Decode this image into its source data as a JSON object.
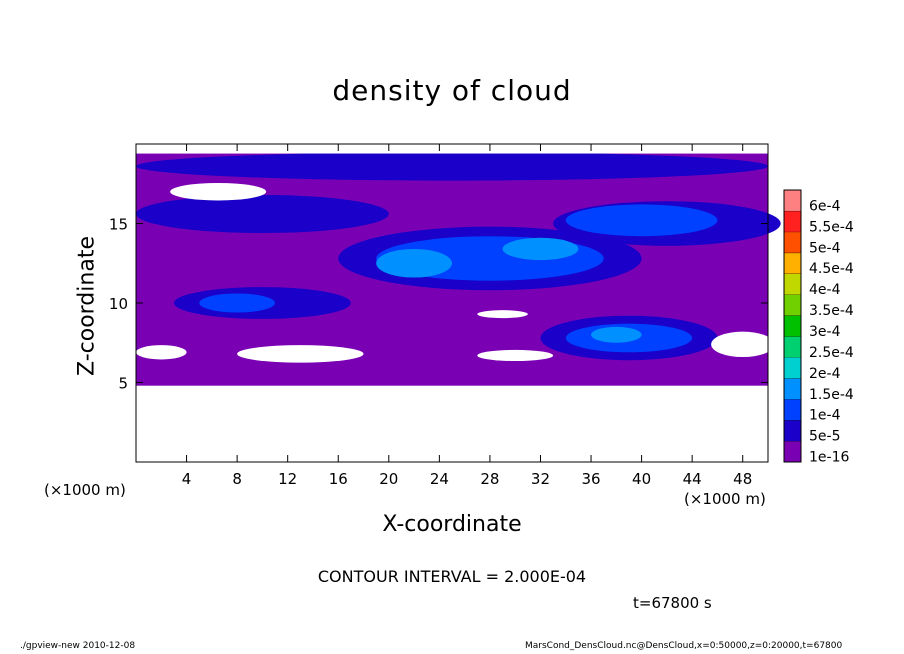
{
  "chart_data": {
    "type": "heatmap",
    "title": "density of cloud",
    "xlabel": "X-coordinate",
    "ylabel": "Z-coordinate",
    "x_unit": "(×1000 m)",
    "y_unit": "(×1000 m)",
    "xlim": [
      0,
      50
    ],
    "ylim": [
      0,
      20
    ],
    "x_ticks": [
      4,
      8,
      12,
      16,
      20,
      24,
      28,
      32,
      36,
      40,
      44,
      48
    ],
    "y_ticks": [
      5,
      10,
      15
    ],
    "colorbar": {
      "labels": [
        "1e-16",
        "5e-5",
        "1e-4",
        "1.5e-4",
        "2e-4",
        "2.5e-4",
        "3e-4",
        "3.5e-4",
        "4e-4",
        "4.5e-4",
        "5e-4",
        "5.5e-4",
        "6e-4"
      ],
      "colors": [
        "#7a00b4",
        "#1a00c8",
        "#0040ff",
        "#0090ff",
        "#00d0d0",
        "#00d070",
        "#00c000",
        "#70d000",
        "#c0d800",
        "#ffb000",
        "#ff5000",
        "#ff2020",
        "#ff8080"
      ]
    },
    "contour_interval": "CONTOUR INTERVAL = 2.000E-04",
    "time": "t=67800 s"
  },
  "footer": {
    "left": "./gpview-new  2010-12-08",
    "right": "MarsCond_DensCloud.nc@DensCloud,x=0:50000,z=0:20000,t=67800"
  }
}
